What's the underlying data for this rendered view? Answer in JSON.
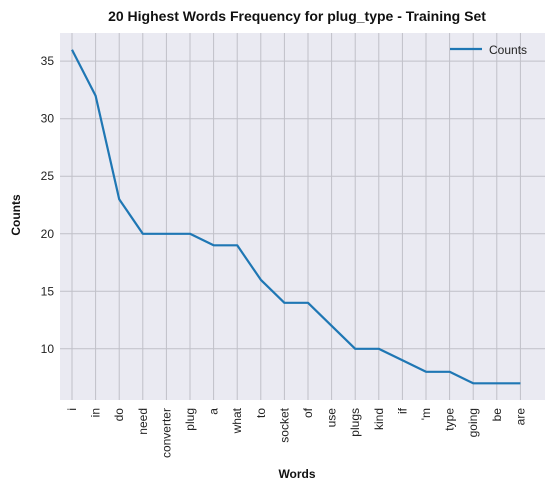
{
  "chart_data": {
    "type": "line",
    "title": "20 Highest Words Frequency for plug_type - Training Set",
    "xlabel": "Words",
    "ylabel": "Counts",
    "categories": [
      "i",
      "in",
      "do",
      "need",
      "converter",
      "plug",
      "a",
      "what",
      "to",
      "socket",
      "of",
      "use",
      "plugs",
      "kind",
      "if",
      "'m",
      "type",
      "going",
      "be",
      "are"
    ],
    "series": [
      {
        "name": "Counts",
        "values": [
          36,
          32,
          23,
          20,
          20,
          20,
          19,
          19,
          16,
          14,
          14,
          12,
          10,
          10,
          9,
          8,
          8,
          7,
          7,
          7
        ],
        "color": "#1f77b4"
      }
    ],
    "ylim": [
      5.55,
      37.45
    ],
    "yticks": [
      10,
      15,
      20,
      25,
      30,
      35
    ],
    "grid": true,
    "legend_position": "top-right",
    "background_color": "#eaeaf2",
    "grid_color": "#c0c0c8"
  }
}
